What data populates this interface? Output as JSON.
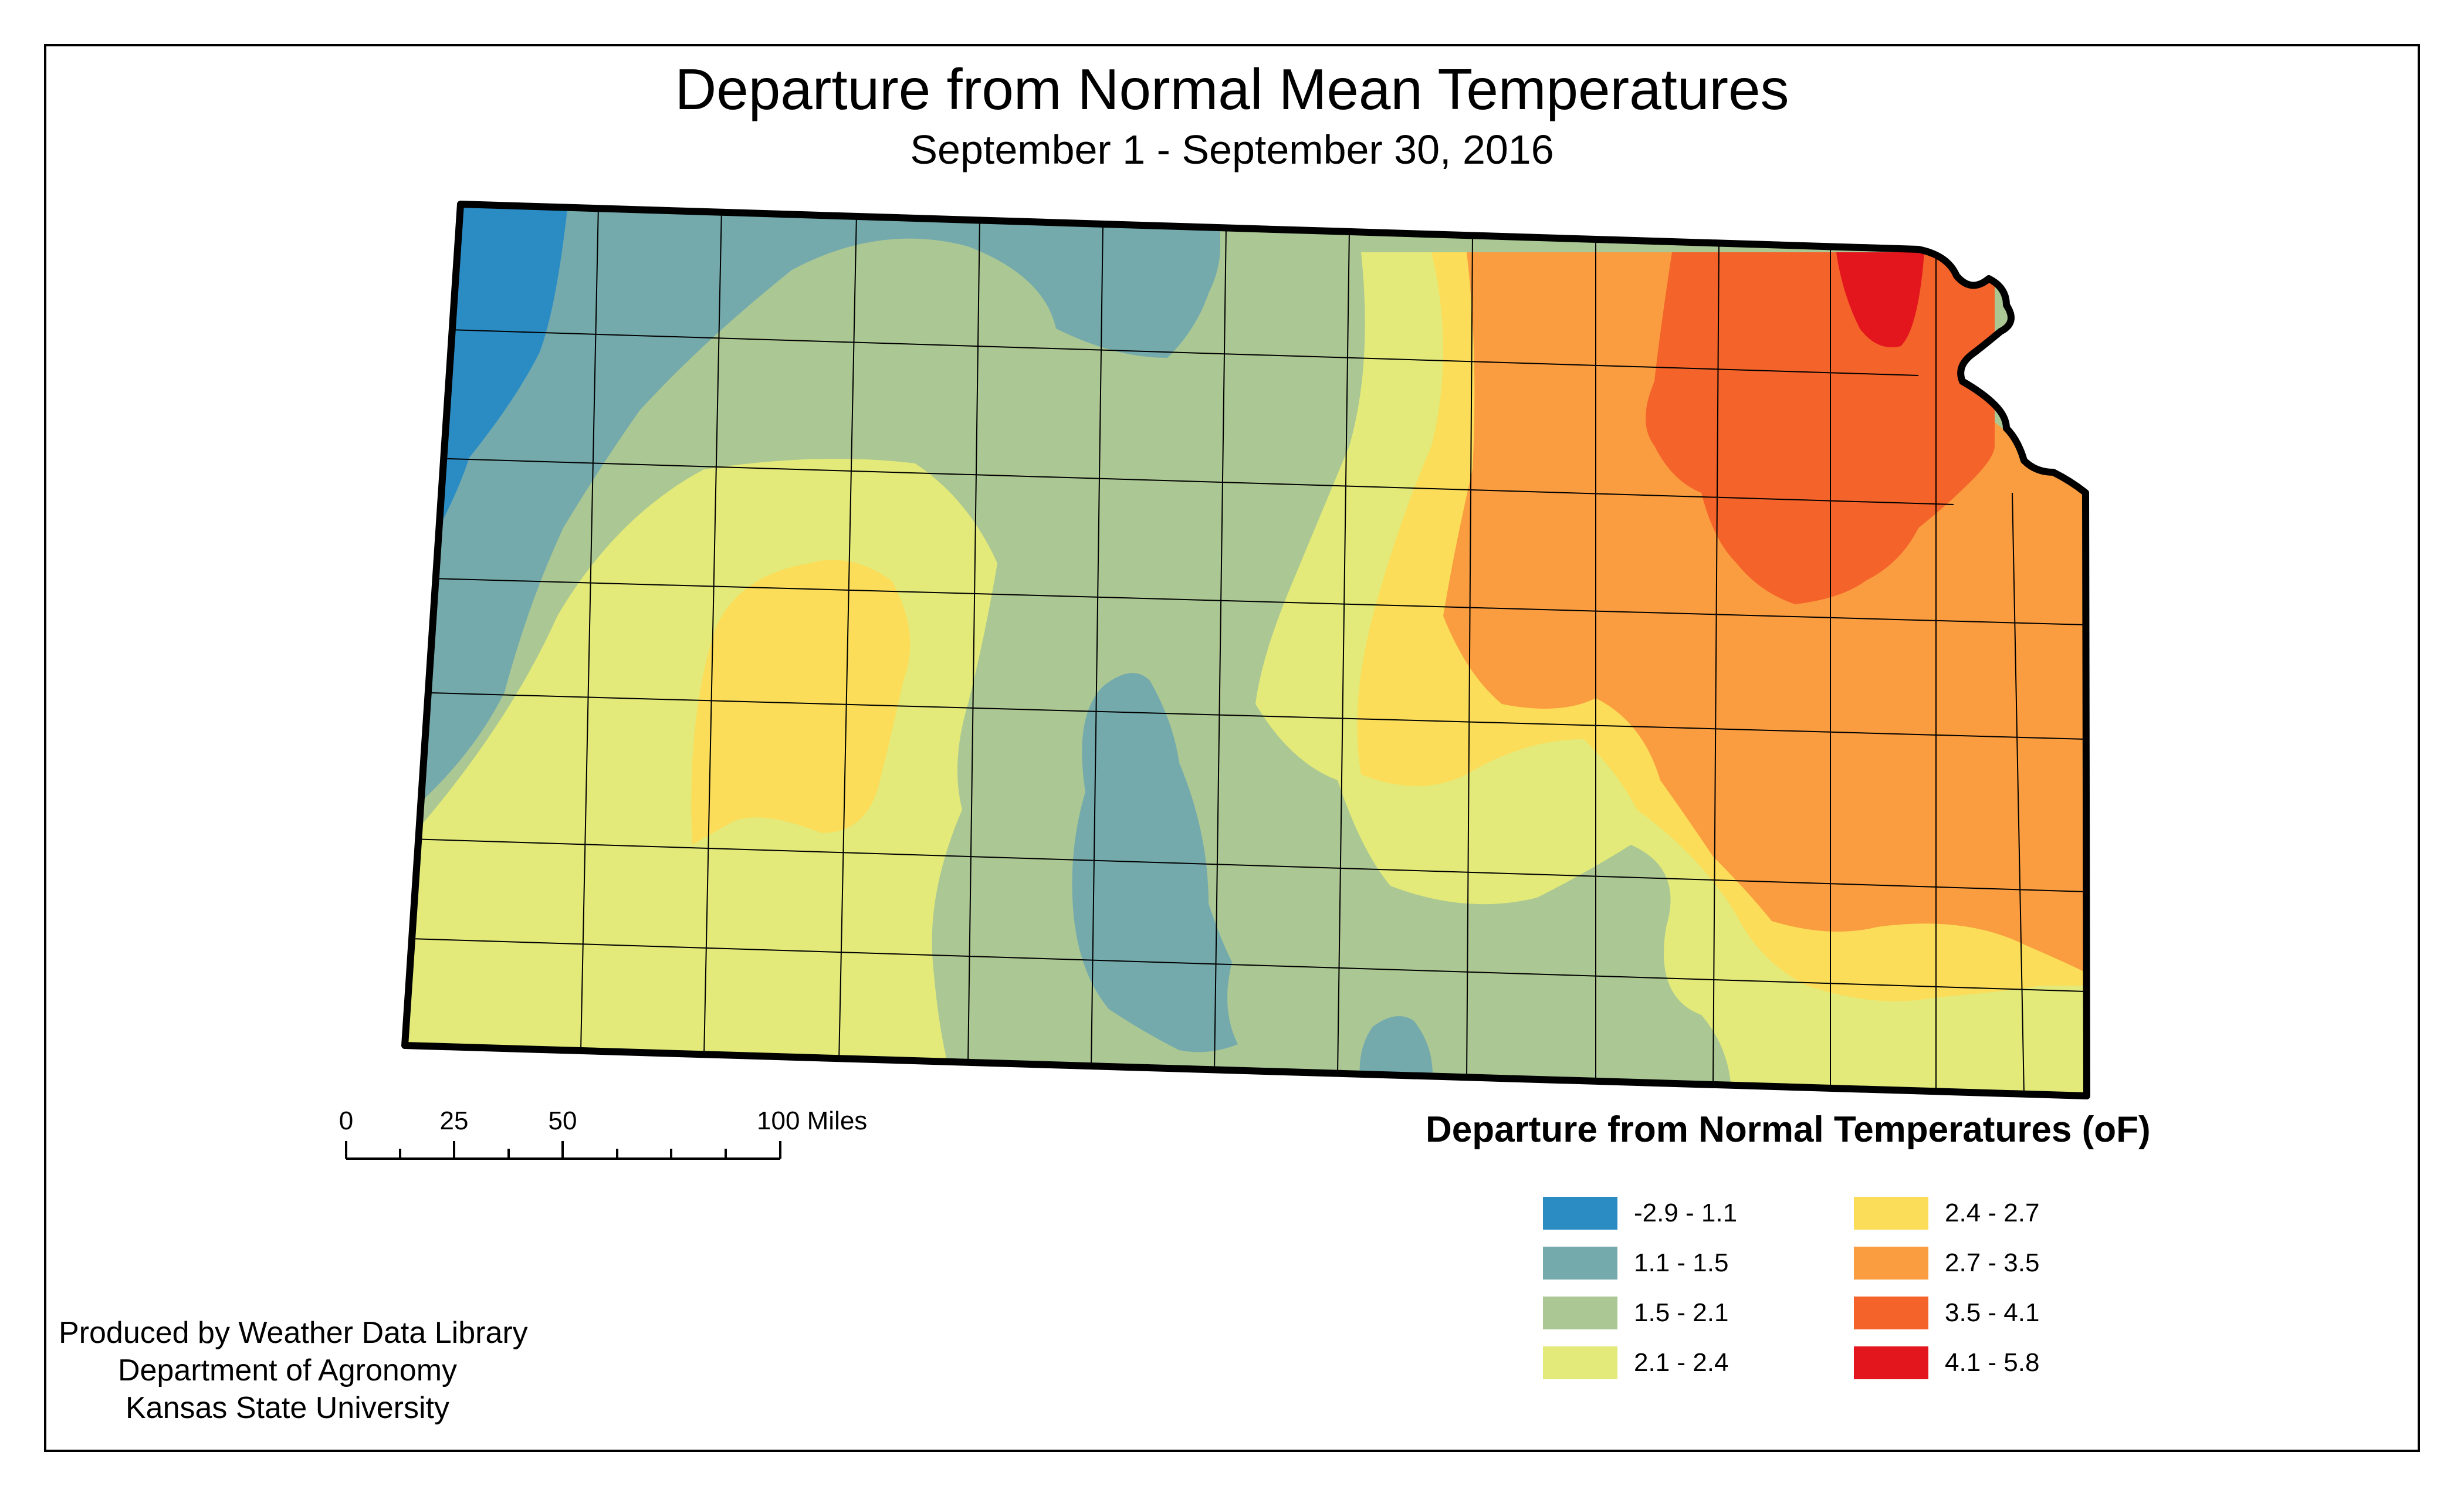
{
  "title": "Departure from Normal Mean Temperatures",
  "subtitle": "September 1 - September 30, 2016",
  "legend": {
    "title": "Departure from Normal Temperatures (oF)",
    "classes": [
      {
        "label": "-2.9 - 1.1",
        "color": "#2b8cc4"
      },
      {
        "label": "1.1 - 1.5",
        "color": "#75aaad"
      },
      {
        "label": "1.5 - 2.1",
        "color": "#abc793"
      },
      {
        "label": "2.1 - 2.4",
        "color": "#e3ea7a"
      },
      {
        "label": "2.4 - 2.7",
        "color": "#fbdd59"
      },
      {
        "label": "2.7 - 3.5",
        "color": "#fa9d40"
      },
      {
        "label": "3.5 - 4.1",
        "color": "#f4632a"
      },
      {
        "label": "4.1 - 5.8",
        "color": "#e3161d"
      }
    ]
  },
  "scale_bar": {
    "labels": [
      "0",
      "25",
      "50",
      "100 Miles"
    ]
  },
  "credits": [
    "Produced by Weather Data Library",
    "Department of Agronomy",
    "Kansas State University"
  ]
}
